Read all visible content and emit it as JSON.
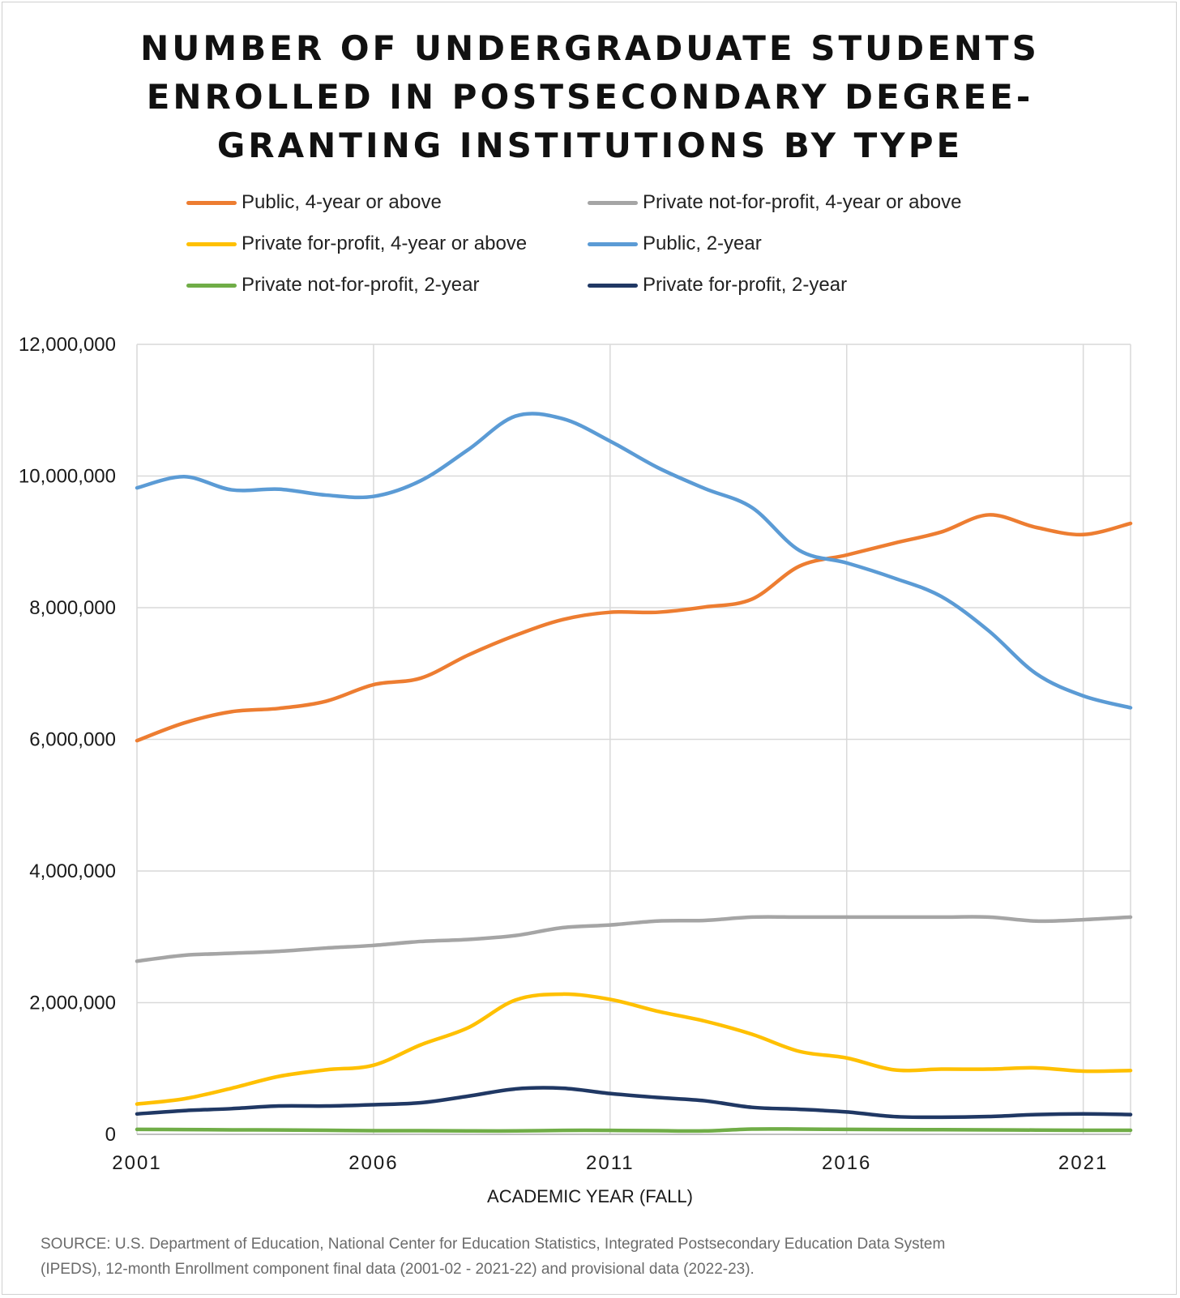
{
  "chart_data": {
    "type": "line",
    "title_lines": [
      "NUMBER OF UNDERGRADUATE STUDENTS",
      "ENROLLED IN POSTSECONDARY DEGREE-",
      "GRANTING INSTITUTIONS BY TYPE"
    ],
    "xlabel": "ACADEMIC YEAR (FALL)",
    "ylabel": "",
    "x": [
      2001,
      2002,
      2003,
      2004,
      2005,
      2006,
      2007,
      2008,
      2009,
      2010,
      2011,
      2012,
      2013,
      2014,
      2015,
      2016,
      2017,
      2018,
      2019,
      2020,
      2021,
      2022
    ],
    "x_tick_labels": [
      "2001",
      "2006",
      "2011",
      "2016",
      "2021"
    ],
    "xlim": [
      2001,
      2022
    ],
    "y_tick_labels": [
      "0",
      "2,000,000",
      "4,000,000",
      "6,000,000",
      "8,000,000",
      "10,000,000",
      "12,000,000"
    ],
    "ylim": [
      0,
      12000000
    ],
    "grid": true,
    "legend_position": "top",
    "series": [
      {
        "name": "Public, 4-year or above",
        "color": "#ED7D31",
        "values": [
          5980000,
          6250000,
          6420000,
          6470000,
          6580000,
          6830000,
          6930000,
          7280000,
          7580000,
          7820000,
          7930000,
          7930000,
          8010000,
          8130000,
          8630000,
          8800000,
          8980000,
          9150000,
          9410000,
          9220000,
          9110000,
          9280000
        ]
      },
      {
        "name": "Private not-for-profit, 4-year or above",
        "color": "#A5A5A5",
        "values": [
          2630000,
          2720000,
          2750000,
          2780000,
          2830000,
          2870000,
          2930000,
          2960000,
          3020000,
          3140000,
          3180000,
          3240000,
          3250000,
          3300000,
          3300000,
          3300000,
          3300000,
          3300000,
          3300000,
          3240000,
          3260000,
          3300000
        ]
      },
      {
        "name": "Private for-profit, 4-year or above",
        "color": "#FFC000",
        "values": [
          460000,
          540000,
          700000,
          880000,
          980000,
          1050000,
          1360000,
          1620000,
          2040000,
          2130000,
          2050000,
          1870000,
          1720000,
          1520000,
          1260000,
          1160000,
          980000,
          990000,
          990000,
          1010000,
          960000,
          970000
        ]
      },
      {
        "name": "Public, 2-year",
        "color": "#5B9BD5",
        "values": [
          9820000,
          9990000,
          9790000,
          9800000,
          9710000,
          9690000,
          9930000,
          10400000,
          10910000,
          10870000,
          10530000,
          10130000,
          9810000,
          9520000,
          8870000,
          8680000,
          8450000,
          8170000,
          7650000,
          7000000,
          6660000,
          6480000
        ]
      },
      {
        "name": "Private not-for-profit, 2-year",
        "color": "#70AD47",
        "values": [
          75000,
          72000,
          68000,
          66000,
          62000,
          55000,
          55000,
          52000,
          52000,
          60000,
          60000,
          55000,
          52000,
          80000,
          80000,
          75000,
          72000,
          70000,
          68000,
          65000,
          62000,
          62000
        ]
      },
      {
        "name": "Private for-profit, 2-year",
        "color": "#203864",
        "values": [
          310000,
          360000,
          390000,
          430000,
          430000,
          450000,
          480000,
          580000,
          690000,
          700000,
          620000,
          560000,
          510000,
          410000,
          380000,
          340000,
          270000,
          260000,
          270000,
          300000,
          310000,
          300000
        ]
      }
    ],
    "source_lines": [
      "SOURCE: U.S. Department of Education, National Center for Education Statistics, Integrated Postsecondary Education Data System",
      "(IPEDS), 12-month Enrollment component final data (2001-02 - 2021-22) and provisional data (2022-23)."
    ]
  }
}
